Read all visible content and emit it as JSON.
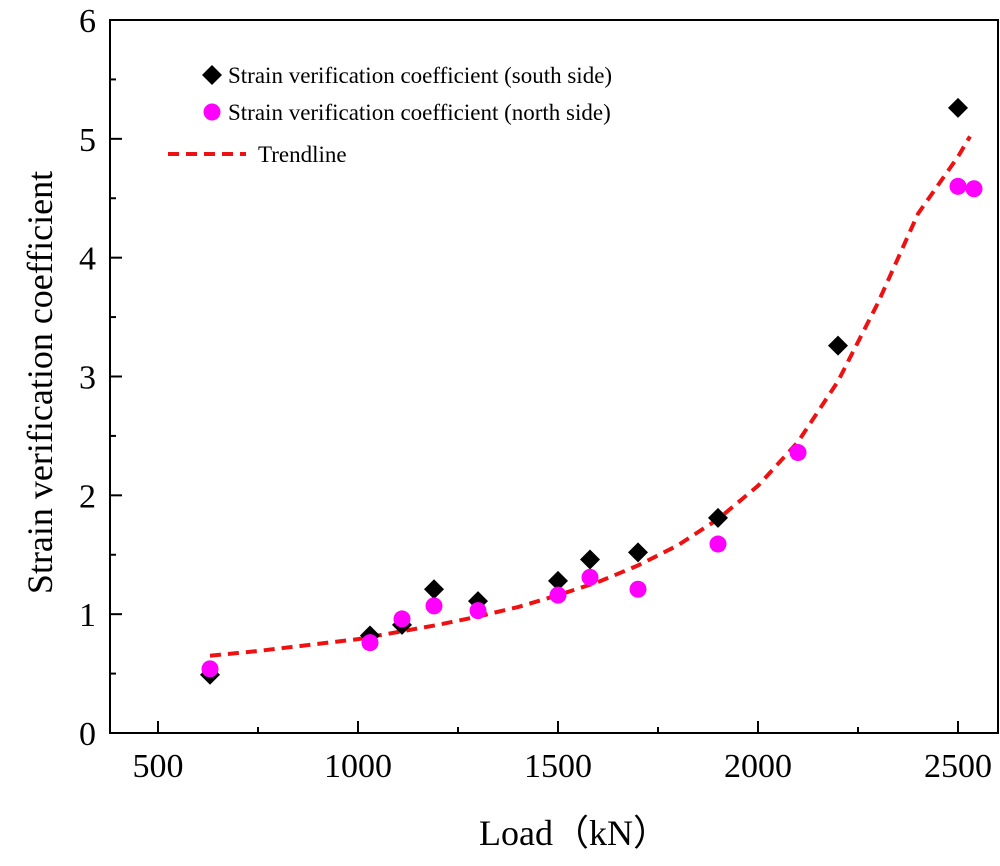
{
  "chart_data": {
    "type": "scatter",
    "xlabel": "Load（kN）",
    "ylabel": "Strain verification coefficient",
    "xlim": [
      380,
      2600
    ],
    "ylim": [
      0,
      6
    ],
    "xticks": [
      500,
      1000,
      1500,
      2000,
      2500
    ],
    "yticks": [
      0,
      1,
      2,
      3,
      4,
      5,
      6
    ],
    "grid": false,
    "legend_position": "top-left",
    "series": [
      {
        "name": "Strain verification coefficient (south side)",
        "marker": "diamond",
        "color": "#000000",
        "x": [
          630,
          1030,
          1110,
          1190,
          1300,
          1500,
          1580,
          1700,
          1900,
          2200,
          2500
        ],
        "y": [
          0.49,
          0.82,
          0.91,
          1.21,
          1.11,
          1.28,
          1.46,
          1.52,
          1.81,
          3.26,
          5.26
        ]
      },
      {
        "name": "Strain verification coefficient (north side)",
        "marker": "circle",
        "color": "#ff00ff",
        "x": [
          630,
          1030,
          1110,
          1190,
          1300,
          1500,
          1580,
          1700,
          1900,
          2100,
          2500,
          2540
        ],
        "y": [
          0.54,
          0.76,
          0.96,
          1.07,
          1.03,
          1.16,
          1.31,
          1.21,
          1.59,
          2.36,
          4.6,
          4.58
        ]
      },
      {
        "name": "Trendline",
        "marker": "dashed-line",
        "color": "#ee1111",
        "x": [
          630,
          750,
          900,
          1000,
          1100,
          1200,
          1300,
          1400,
          1500,
          1600,
          1700,
          1800,
          1900,
          2000,
          2100,
          2200,
          2300,
          2400,
          2500,
          2530
        ],
        "y": [
          0.65,
          0.69,
          0.75,
          0.79,
          0.85,
          0.91,
          0.98,
          1.06,
          1.16,
          1.27,
          1.41,
          1.58,
          1.8,
          2.08,
          2.45,
          2.96,
          3.62,
          4.37,
          4.85,
          5.02
        ]
      }
    ]
  }
}
